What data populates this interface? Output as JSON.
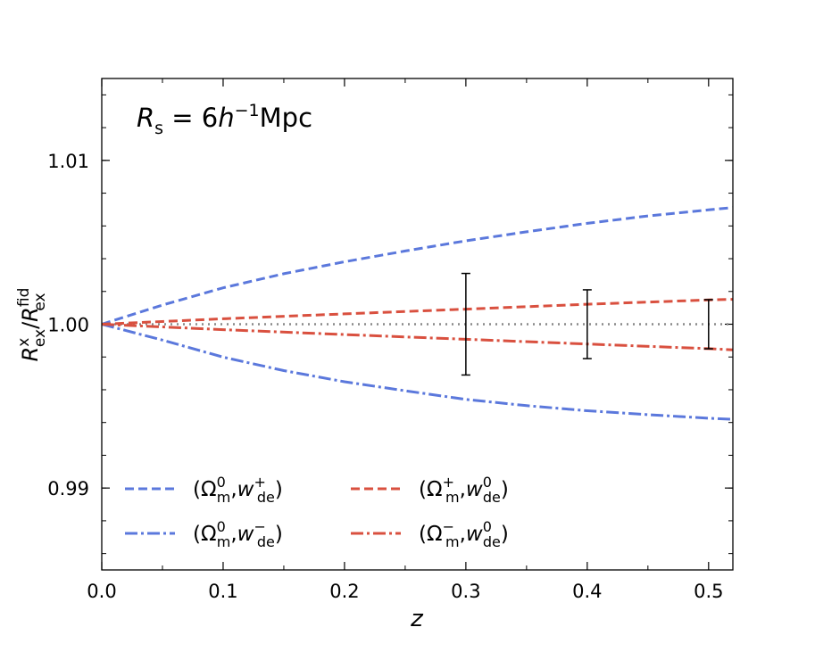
{
  "chart_data": {
    "type": "line",
    "annotation": {
      "prefix": "R",
      "prefix_sub": "s",
      "eq": " = 6",
      "h": "h",
      "h_sup": "−1",
      "unit": "Mpc"
    },
    "xlabel": "z",
    "ylabel": {
      "n_main": "R",
      "n_sup": "x",
      "n_sub": "ex",
      "slash": "/",
      "d_main": "R",
      "d_sup": "fid",
      "d_sub": "ex"
    },
    "xlim": [
      0.0,
      0.52
    ],
    "ylim": [
      0.985,
      1.015
    ],
    "xticks": [
      0.0,
      0.1,
      0.2,
      0.3,
      0.4,
      0.5
    ],
    "xtick_labels": [
      "0.0",
      "0.1",
      "0.2",
      "0.3",
      "0.4",
      "0.5"
    ],
    "yticks": [
      0.99,
      1.0,
      1.01
    ],
    "ytick_labels": [
      "0.99",
      "1.00",
      "1.01"
    ],
    "grid": false,
    "legend_position": "lower-left, two columns",
    "colors": {
      "blue": "#5B78DC",
      "red": "#D9503F",
      "reference": "#888888",
      "errorbar": "#000000"
    },
    "series": [
      {
        "legend": {
          "open": "(Ω",
          "a_sup": "0",
          "a_sub": "m",
          "comma": ",",
          "w": "w",
          "b_sup": "+",
          "b_sub": "de",
          "close": ")"
        },
        "color": "blue",
        "style": "dashed",
        "x": [
          0.0,
          0.05,
          0.1,
          0.15,
          0.2,
          0.25,
          0.3,
          0.35,
          0.4,
          0.45,
          0.5,
          0.52
        ],
        "y": [
          1.0,
          1.00117,
          1.00222,
          1.00308,
          1.00381,
          1.00447,
          1.00509,
          1.00564,
          1.00616,
          1.00661,
          1.00698,
          1.00712
        ]
      },
      {
        "legend": {
          "open": "(Ω",
          "a_sup": "0",
          "a_sub": "m",
          "comma": ",",
          "w": "w",
          "b_sup": "−",
          "b_sub": "de",
          "close": ")"
        },
        "color": "blue",
        "style": "dashdot",
        "x": [
          0.0,
          0.05,
          0.1,
          0.15,
          0.2,
          0.25,
          0.3,
          0.35,
          0.4,
          0.45,
          0.5,
          0.52
        ],
        "y": [
          1.0,
          0.99903,
          0.99799,
          0.99717,
          0.99649,
          0.99594,
          0.99541,
          0.99503,
          0.99472,
          0.99448,
          0.99426,
          0.99419
        ]
      },
      {
        "legend": {
          "open": "(Ω",
          "a_sup": "+",
          "a_sub": "m",
          "comma": ",",
          "w": "w",
          "b_sup": "0",
          "b_sub": "de",
          "close": ")"
        },
        "color": "red",
        "style": "dashed",
        "x": [
          0.0,
          0.1,
          0.2,
          0.3,
          0.4,
          0.5,
          0.52
        ],
        "y": [
          1.0,
          1.00033,
          1.00063,
          1.00092,
          1.00122,
          1.00148,
          1.00152
        ]
      },
      {
        "legend": {
          "open": "(Ω",
          "a_sup": "−",
          "a_sub": "m",
          "comma": ",",
          "w": "w",
          "b_sup": "0",
          "b_sub": "de",
          "close": ")"
        },
        "color": "red",
        "style": "dashdot",
        "x": [
          0.0,
          0.1,
          0.2,
          0.3,
          0.4,
          0.5,
          0.52
        ],
        "y": [
          1.0,
          0.99967,
          0.99937,
          0.99908,
          0.99879,
          0.99851,
          0.99844
        ]
      }
    ],
    "reference_line": {
      "y": 1.0,
      "style": "dotted",
      "color": "reference"
    },
    "error_bars": [
      {
        "x": 0.3,
        "y": 1.0,
        "low": 0.9969,
        "high": 1.0031
      },
      {
        "x": 0.4,
        "y": 1.0,
        "low": 0.9979,
        "high": 1.0021
      },
      {
        "x": 0.5,
        "y": 1.0,
        "low": 0.9985,
        "high": 1.0015
      }
    ]
  }
}
